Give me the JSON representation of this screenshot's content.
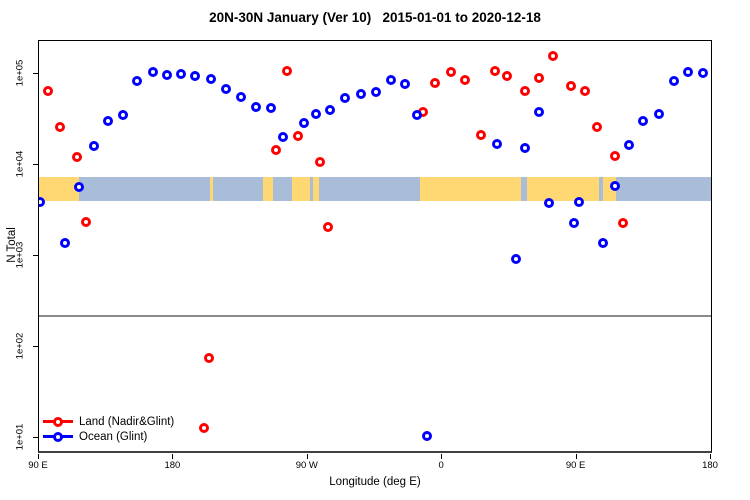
{
  "chart_data": {
    "type": "scatter",
    "title": "20N-30N January (Ver 10)   2015-01-01 to 2020-12-18",
    "xlabel": "Longitude (deg E)",
    "ylabel": "N Total",
    "x_scale": "linear",
    "y_scale": "log",
    "xlim": [
      90,
      540
    ],
    "ylim": [
      6.85,
      230000
    ],
    "grid": false,
    "x_ticks": [
      {
        "lon": 90,
        "label": "90 E"
      },
      {
        "lon": 180,
        "label": "180"
      },
      {
        "lon": 270,
        "label": "90 W"
      },
      {
        "lon": 360,
        "label": "0"
      },
      {
        "lon": 450,
        "label": "90 E"
      },
      {
        "lon": 540,
        "label": "180"
      }
    ],
    "y_ticks": [
      {
        "value": 10,
        "label": "1e+01"
      },
      {
        "value": 100,
        "label": "1e+02"
      },
      {
        "value": 1000,
        "label": "1e+03"
      },
      {
        "value": 10000,
        "label": "1e+04"
      },
      {
        "value": 100000,
        "label": "1e+05"
      }
    ],
    "reference_line": {
      "value": 220,
      "color": "#8a8a8a"
    },
    "map_strip": {
      "comment": "world land/ocean band for the 20N-30N latitude zone",
      "value_top": 7300,
      "value_bottom": 4000,
      "ocean_color": "#a9bdd9",
      "land_color": "#ffd874",
      "land_segments_lon": [
        [
          90,
          116.8
        ],
        [
          204.5,
          206.5
        ],
        [
          239.8,
          246.5
        ],
        [
          259.7,
          271.7
        ],
        [
          273.7,
          277.7
        ],
        [
          344.8,
          413.0
        ],
        [
          416.5,
          464.9
        ],
        [
          467.6,
          476.4
        ]
      ]
    },
    "legend_position": "bottom-left",
    "series": [
      {
        "name": "Land (Nadir&Glint)",
        "color": "#ff0000",
        "marker": "open-circle",
        "points": [
          [
            96.0,
            65000
          ],
          [
            104.1,
            26200
          ],
          [
            115.4,
            12300
          ],
          [
            248.7,
            14700
          ],
          [
            256.1,
            108000
          ],
          [
            263.4,
            20900
          ],
          [
            278.2,
            10800
          ],
          [
            121.5,
            2370
          ],
          [
            283.5,
            2080
          ],
          [
            347.1,
            38200
          ],
          [
            355.2,
            79500
          ],
          [
            365.9,
            105000
          ],
          [
            375.3,
            86000
          ],
          [
            386.0,
            21400
          ],
          [
            395.4,
            108000
          ],
          [
            403.4,
            95000
          ],
          [
            415.5,
            65000
          ],
          [
            424.8,
            90400
          ],
          [
            434.2,
            158000
          ],
          [
            446.2,
            73800
          ],
          [
            455.6,
            65000
          ],
          [
            463.6,
            26200
          ],
          [
            475.7,
            12600
          ],
          [
            481.0,
            2310
          ],
          [
            203.8,
            76
          ],
          [
            200.4,
            12.9
          ]
        ]
      },
      {
        "name": "Ocean (Glint)",
        "color": "#0000ff",
        "marker": "open-circle",
        "points": [
          [
            126.8,
            16200
          ],
          [
            136.2,
            30500
          ],
          [
            146.2,
            35400
          ],
          [
            155.6,
            83900
          ],
          [
            166.3,
            105000
          ],
          [
            175.7,
            97500
          ],
          [
            185.1,
            100000
          ],
          [
            194.5,
            95000
          ],
          [
            205.2,
            88100
          ],
          [
            215.2,
            68400
          ],
          [
            225.3,
            55900
          ],
          [
            235.3,
            43400
          ],
          [
            245.4,
            42300
          ],
          [
            253.4,
            20300
          ],
          [
            267.4,
            29000
          ],
          [
            275.5,
            36300
          ],
          [
            284.9,
            40200
          ],
          [
            294.9,
            54500
          ],
          [
            305.6,
            60100
          ],
          [
            315.6,
            63000
          ],
          [
            325.7,
            86000
          ],
          [
            335.1,
            77600
          ],
          [
            343.1,
            35400
          ],
          [
            396.7,
            17000
          ],
          [
            409.4,
            927
          ],
          [
            415.5,
            15400
          ],
          [
            424.8,
            38200
          ],
          [
            431.5,
            3820
          ],
          [
            448.2,
            2310
          ],
          [
            451.6,
            3920
          ],
          [
            467.7,
            1390
          ],
          [
            475.7,
            5880
          ],
          [
            485.0,
            16600
          ],
          [
            494.4,
            30500
          ],
          [
            505.1,
            36300
          ],
          [
            515.2,
            83900
          ],
          [
            524.5,
            105000
          ],
          [
            534.6,
            103000
          ],
          [
            90.7,
            3920
          ],
          [
            107.4,
            1390
          ],
          [
            116.8,
            5730
          ],
          [
            349.8,
            10.4
          ]
        ]
      }
    ]
  }
}
